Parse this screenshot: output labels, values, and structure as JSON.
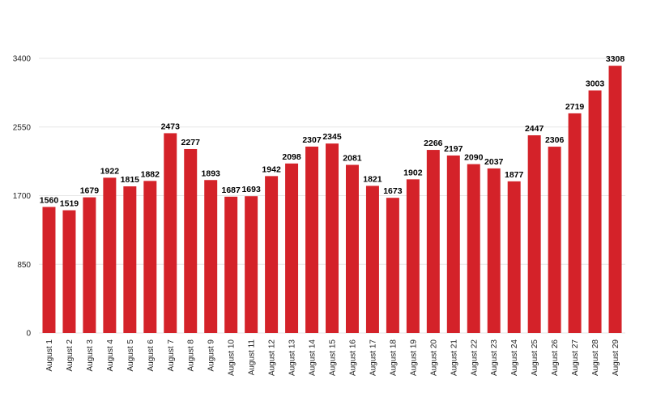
{
  "chart_data": {
    "type": "bar",
    "title": "",
    "xlabel": "",
    "ylabel": "",
    "ylim": [
      0,
      3400
    ],
    "yticks": [
      0,
      850,
      1700,
      2550,
      3400
    ],
    "grid": true,
    "legend": "none",
    "bar_color": "#d42229",
    "categories": [
      "August 1",
      "August 2",
      "August 3",
      "August 4",
      "August 5",
      "August 6",
      "August 7",
      "August 8",
      "August 9",
      "August 10",
      "August 11",
      "August 12",
      "August 13",
      "August 14",
      "August 15",
      "August 16",
      "August 17",
      "August 18",
      "August 19",
      "August 20",
      "August 21",
      "August 22",
      "August 23",
      "August 24",
      "August 25",
      "August 26",
      "August 27",
      "August 28",
      "August 29"
    ],
    "values": [
      1560,
      1519,
      1679,
      1922,
      1815,
      1882,
      2473,
      2277,
      1893,
      1687,
      1693,
      1942,
      2098,
      2307,
      2345,
      2081,
      1821,
      1673,
      1902,
      2266,
      2197,
      2090,
      2037,
      1877,
      2447,
      2306,
      2719,
      3003,
      3308
    ]
  }
}
